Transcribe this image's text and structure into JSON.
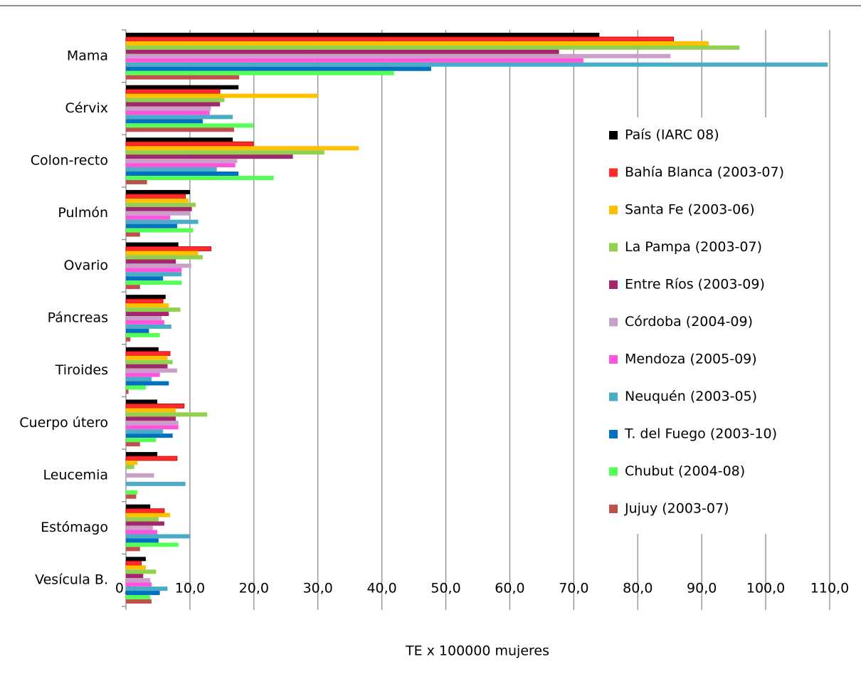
{
  "chart_data": {
    "type": "hbar",
    "x_label": "TE x 100000 mujeres",
    "categories": [
      "Mama",
      "Cérvix",
      "Colon-recto",
      "Pulmón",
      "Ovario",
      "Páncreas",
      "Tiroides",
      "Cuerpo útero",
      "Leucemia",
      "Estómago",
      "Vesícula B."
    ],
    "xlim": [
      0,
      110
    ],
    "xticks": [
      {
        "value": 0,
        "label": "0,0"
      },
      {
        "value": 10,
        "label": "10,0"
      },
      {
        "value": 20,
        "label": "20,0"
      },
      {
        "value": 30,
        "label": "30,0"
      },
      {
        "value": 40,
        "label": "40,0"
      },
      {
        "value": 50,
        "label": "50,0"
      },
      {
        "value": 60,
        "label": "60,0"
      },
      {
        "value": 70,
        "label": "70,0"
      },
      {
        "value": 80,
        "label": "80,0"
      },
      {
        "value": 90,
        "label": "90,0"
      },
      {
        "value": 100,
        "label": "100,0"
      },
      {
        "value": 110,
        "label": "110,0"
      }
    ],
    "grid": true,
    "legend": "right",
    "series": [
      {
        "name": "País (IARC 08)",
        "color": "#000000",
        "values": [
          74.0,
          17.6,
          16.7,
          10.0,
          8.2,
          6.2,
          5.1,
          4.9,
          4.9,
          3.8,
          3.1
        ]
      },
      {
        "name": "Bahía Blanca (2003-07)",
        "color": "#ff2a2a",
        "values": [
          85.6,
          14.7,
          19.9,
          9.3,
          13.3,
          5.8,
          6.9,
          9.1,
          8.0,
          6.0,
          2.4
        ]
      },
      {
        "name": "Santa Fe (2003-06)",
        "color": "#ffc000",
        "values": [
          91.1,
          30.0,
          36.4,
          9.8,
          11.3,
          6.7,
          6.5,
          7.8,
          1.8,
          6.9,
          3.1
        ]
      },
      {
        "name": "La Pampa (2003-07)",
        "color": "#92d050",
        "values": [
          95.9,
          15.4,
          31.0,
          10.9,
          12.0,
          8.5,
          7.3,
          12.7,
          1.3,
          5.1,
          4.7
        ]
      },
      {
        "name": "Entre Ríos (2003-09)",
        "color": "#a3286b",
        "values": [
          67.7,
          14.7,
          26.1,
          10.3,
          7.8,
          6.7,
          6.5,
          7.8,
          null,
          6.0,
          2.7
        ]
      },
      {
        "name": "Córdoba (2004-09)",
        "color": "#c9a0c8",
        "values": [
          85.1,
          13.3,
          17.4,
          10.0,
          10.2,
          5.6,
          8.0,
          8.2,
          4.4,
          4.2,
          3.8
        ]
      },
      {
        "name": "Mendoza (2005-09)",
        "color": "#ff55dd",
        "values": [
          71.5,
          13.1,
          17.1,
          6.9,
          8.7,
          6.0,
          5.3,
          8.2,
          null,
          4.9,
          4.0
        ]
      },
      {
        "name": "Neuquén (2003-05)",
        "color": "#4bacc6",
        "values": [
          109.7,
          16.7,
          14.2,
          11.3,
          8.7,
          7.1,
          4.0,
          5.8,
          9.3,
          10.0,
          6.5
        ]
      },
      {
        "name": "T. del Fuego (2003-10)",
        "color": "#0070c0",
        "values": [
          47.7,
          12.0,
          17.6,
          8.0,
          5.8,
          3.6,
          6.7,
          7.3,
          null,
          5.1,
          5.3
        ]
      },
      {
        "name": "Chubut (2004-08)",
        "color": "#55ff55",
        "values": [
          41.9,
          19.9,
          23.1,
          10.5,
          8.7,
          5.3,
          3.1,
          4.7,
          1.8,
          8.2,
          3.8
        ]
      },
      {
        "name": "Jujuy (2003-07)",
        "color": "#c0504d",
        "values": [
          17.7,
          16.9,
          3.3,
          2.2,
          2.2,
          0.7,
          0.4,
          2.2,
          1.6,
          2.2,
          4.0
        ]
      }
    ]
  }
}
